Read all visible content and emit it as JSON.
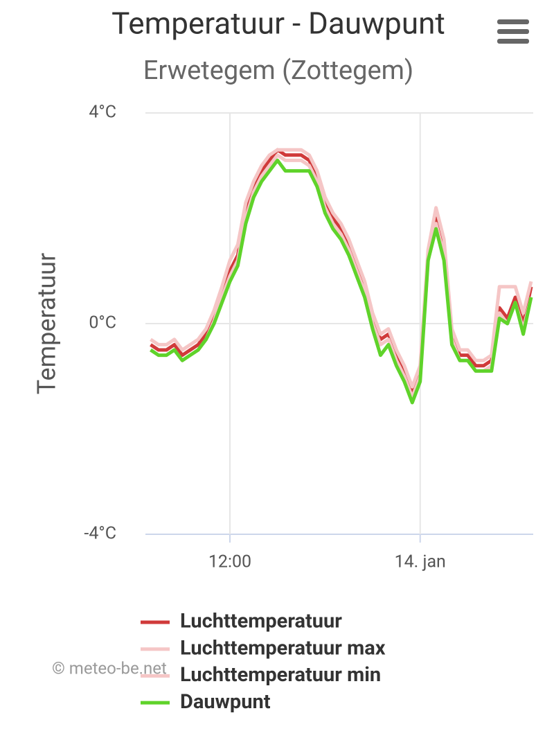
{
  "chart_data": {
    "type": "line",
    "title": "Temperatuur - Dauwpunt",
    "subtitle": "Erwetegem (Zottegem)",
    "y_axis_label": "Temperatuur",
    "credits": "© meteo-be.net",
    "categories": [
      null,
      null,
      null,
      null,
      null,
      null,
      null,
      null,
      null,
      null,
      "12:00",
      null,
      null,
      null,
      null,
      null,
      null,
      null,
      null,
      null,
      null,
      null,
      null,
      null,
      null,
      null,
      null,
      null,
      null,
      null,
      null,
      null,
      null,
      null,
      "14. jan",
      null,
      null,
      null,
      null,
      null,
      null,
      null,
      null,
      null,
      null,
      null,
      null,
      null,
      null
    ],
    "ylim": [
      -4,
      4
    ],
    "yticks": [
      {
        "value": -4,
        "label": "-4°C"
      },
      {
        "value": 0,
        "label": "0°C"
      },
      {
        "value": 4,
        "label": "4°C"
      }
    ],
    "grid": true,
    "legend": "bottom",
    "series": [
      {
        "name": "Luchttemperatuur",
        "color": "#d03a3a",
        "values": [
          -0.4,
          -0.5,
          -0.5,
          -0.4,
          -0.6,
          -0.5,
          -0.4,
          -0.2,
          0.15,
          0.6,
          1.0,
          1.3,
          2.1,
          2.6,
          2.9,
          3.1,
          3.3,
          3.2,
          3.2,
          3.2,
          3.1,
          2.8,
          2.3,
          2.0,
          1.8,
          1.5,
          1.1,
          0.7,
          0.1,
          -0.3,
          -0.2,
          -0.6,
          -0.9,
          -1.3,
          -0.9,
          1.3,
          2.0,
          1.4,
          -0.2,
          -0.6,
          -0.6,
          -0.8,
          -0.8,
          -0.7,
          0.3,
          0.1,
          0.5,
          0.0,
          0.7
        ]
      },
      {
        "name": "Luchttemperatuur max",
        "color": "#f5c6c6",
        "values": [
          -0.3,
          -0.4,
          -0.4,
          -0.3,
          -0.5,
          -0.4,
          -0.3,
          -0.1,
          0.25,
          0.7,
          1.2,
          1.5,
          2.3,
          2.7,
          3.0,
          3.2,
          3.3,
          3.3,
          3.3,
          3.3,
          3.2,
          2.9,
          2.4,
          2.1,
          1.9,
          1.6,
          1.2,
          0.8,
          0.2,
          -0.2,
          -0.1,
          -0.5,
          -0.8,
          -1.2,
          -0.8,
          1.4,
          2.2,
          1.6,
          -0.1,
          -0.5,
          -0.5,
          -0.7,
          -0.7,
          -0.6,
          0.7,
          0.7,
          0.7,
          0.2,
          0.8
        ]
      },
      {
        "name": "Luchttemperatuur min",
        "color": "#f5c6c6",
        "values": [
          -0.5,
          -0.6,
          -0.6,
          -0.5,
          -0.7,
          -0.6,
          -0.5,
          -0.3,
          0.05,
          0.5,
          0.9,
          1.2,
          2.0,
          2.5,
          2.8,
          3.0,
          3.2,
          3.1,
          3.1,
          3.1,
          3.0,
          2.7,
          2.2,
          1.9,
          1.7,
          1.4,
          1.0,
          0.6,
          0.0,
          -0.4,
          -0.3,
          -0.7,
          -1.0,
          -1.4,
          -1.0,
          1.2,
          1.9,
          1.3,
          -0.3,
          -0.7,
          -0.7,
          -0.9,
          -0.9,
          -0.8,
          0.2,
          0.0,
          0.4,
          -0.1,
          0.5
        ]
      },
      {
        "name": "Dauwpunt",
        "color": "#5fd32a",
        "values": [
          -0.5,
          -0.6,
          -0.6,
          -0.5,
          -0.7,
          -0.6,
          -0.5,
          -0.3,
          0.0,
          0.4,
          0.8,
          1.1,
          1.9,
          2.4,
          2.7,
          2.9,
          3.1,
          2.9,
          2.9,
          2.9,
          2.9,
          2.6,
          2.1,
          1.8,
          1.6,
          1.3,
          0.9,
          0.5,
          -0.1,
          -0.6,
          -0.4,
          -0.8,
          -1.1,
          -1.5,
          -1.1,
          1.2,
          1.8,
          1.2,
          -0.4,
          -0.7,
          -0.7,
          -0.9,
          -0.9,
          -0.9,
          0.1,
          0.0,
          0.4,
          -0.2,
          0.5
        ]
      }
    ]
  }
}
